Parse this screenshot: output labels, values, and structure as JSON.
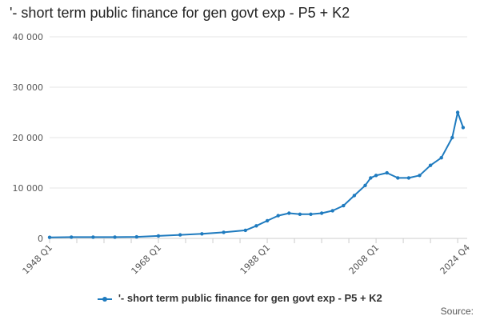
{
  "chart_data": {
    "type": "line",
    "title": "'- short term public finance for gen govt exp - P5 + K2",
    "xlabel": "",
    "ylabel": "",
    "ylim": [
      0,
      40000
    ],
    "y_ticks": [
      "0",
      "10 000",
      "20 000",
      "30 000",
      "40 000"
    ],
    "x_range": [
      "1948 Q1",
      "2024 Q4"
    ],
    "x_tick_labels": [
      "1948 Q1",
      "1968 Q1",
      "1988 Q1",
      "2008 Q1",
      "2024 Q4"
    ],
    "grid": "horizontal",
    "legend_position": "bottom",
    "series": [
      {
        "name": "'- short term public finance for gen govt exp - P5 + K2",
        "color": "#1f7bbf",
        "x": [
          "1948",
          "1952",
          "1956",
          "1960",
          "1964",
          "1968",
          "1972",
          "1976",
          "1980",
          "1984",
          "1986",
          "1988",
          "1990",
          "1992",
          "1994",
          "1996",
          "1998",
          "2000",
          "2002",
          "2004",
          "2006",
          "2007",
          "2008",
          "2010",
          "2012",
          "2014",
          "2016",
          "2018",
          "2020",
          "2022",
          "2023",
          "2024"
        ],
        "values": [
          200,
          250,
          250,
          250,
          300,
          500,
          700,
          900,
          1200,
          1600,
          2500,
          3500,
          4500,
          5000,
          4800,
          4800,
          5000,
          5500,
          6500,
          8500,
          10500,
          12000,
          12500,
          13000,
          12000,
          12000,
          12500,
          14500,
          16000,
          20000,
          25000,
          22000
        ]
      }
    ]
  },
  "legend": {
    "label": "'- short term public finance for gen govt exp - P5 + K2"
  },
  "source_label": "Source:"
}
